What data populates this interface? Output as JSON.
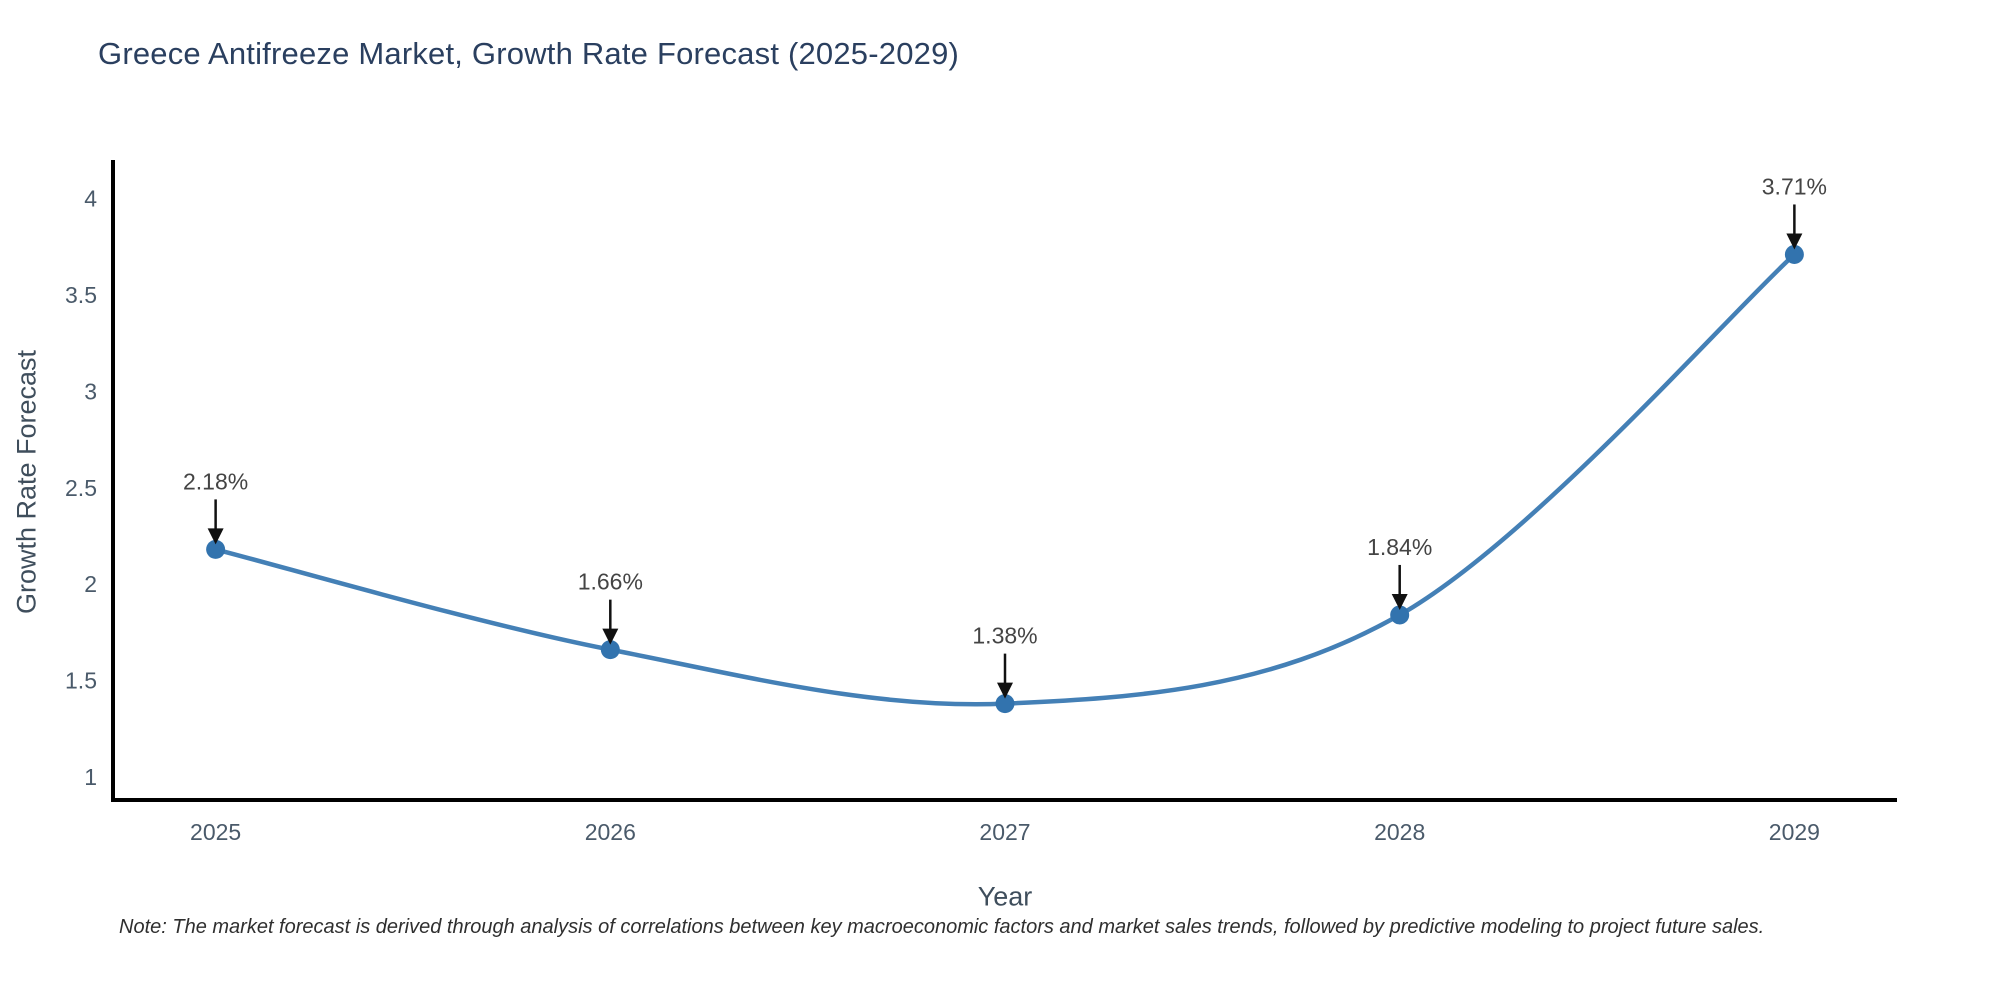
{
  "title": "Greece Antifreeze Market, Growth Rate Forecast (2025-2029)",
  "note": "Note: The market forecast is derived through analysis of correlations between key macroeconomic factors and market sales trends, followed by predictive modeling to project future sales.",
  "chart_data": {
    "type": "line",
    "title": "Greece Antifreeze Market, Growth Rate Forecast (2025-2029)",
    "xlabel": "Year",
    "ylabel": "Growth Rate Forecast",
    "x": [
      2025,
      2026,
      2027,
      2028,
      2029
    ],
    "values": [
      2.18,
      1.66,
      1.38,
      1.84,
      3.71
    ],
    "point_labels": [
      "2.18%",
      "1.66%",
      "1.38%",
      "1.84%",
      "3.71%"
    ],
    "yticks": [
      1,
      1.5,
      2,
      2.5,
      3,
      3.5,
      4
    ],
    "xticks": [
      2025,
      2026,
      2027,
      2028,
      2029
    ],
    "ylim": [
      0.88,
      4.2
    ],
    "xlim": [
      2024.74,
      2029.26
    ],
    "grid": false,
    "legend": false,
    "line_shape": "spline",
    "annotations": "black arrows pointing down to each data point with percentage labels",
    "colors": {
      "line": "#4480b6",
      "marker": "#3273ae",
      "axis": "#000000",
      "tick_label": "#4a5a6a",
      "point_label": "#444444",
      "title": "#2a3f5f",
      "arrow": "#111111",
      "background": "#ffffff"
    }
  }
}
